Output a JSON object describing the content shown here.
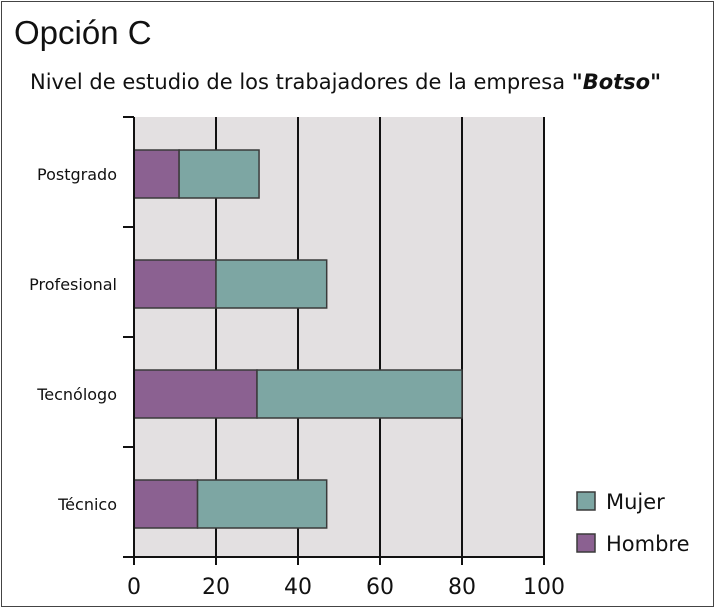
{
  "page": {
    "option_title": "Opción C"
  },
  "chart_data": {
    "type": "bar",
    "orientation": "horizontal",
    "stacked": true,
    "title_prefix": "Nivel de estudio de los trabajadores de la empresa ",
    "title_company": "\"Botso\"",
    "categories": [
      "Postgrado",
      "Profesional",
      "Tecnólogo",
      "Técnico"
    ],
    "series": [
      {
        "name": "Hombre",
        "color": "#8b6191",
        "values": [
          11,
          20,
          30,
          15.5
        ]
      },
      {
        "name": "Mujer",
        "color": "#7da6a3",
        "values": [
          19.5,
          27,
          50,
          31.5
        ]
      }
    ],
    "xlim": [
      0,
      100
    ],
    "xticks": [
      0,
      20,
      40,
      60,
      80,
      100
    ],
    "grid": "vertical",
    "background": "#e3e0e1",
    "legend": {
      "position": "bottom-right",
      "order": [
        "Mujer",
        "Hombre"
      ]
    }
  }
}
